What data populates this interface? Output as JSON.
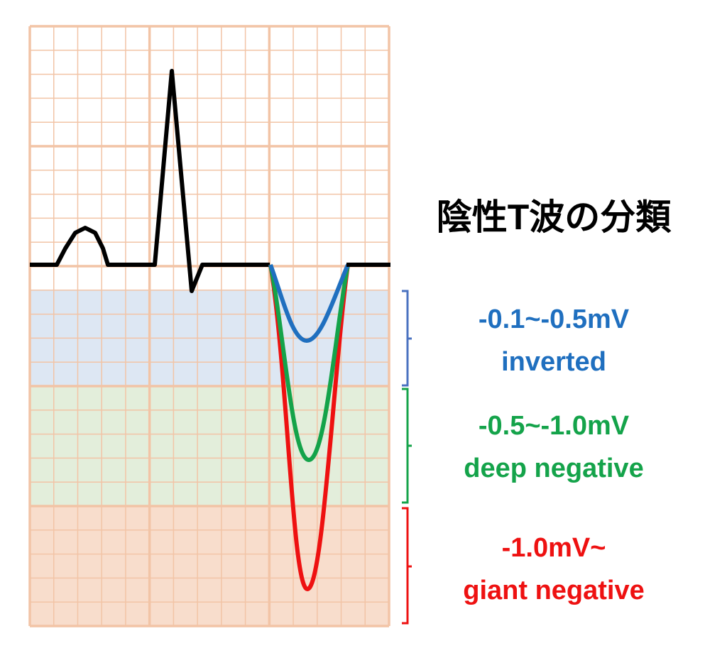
{
  "title": "陰性T波の分類",
  "categories": [
    {
      "range": "-0.1~-0.5mV",
      "name": "inverted",
      "color": "#1f6fbf"
    },
    {
      "range": "-0.5~-1.0mV",
      "name": "deep negative",
      "color": "#14a34a"
    },
    {
      "range": "-1.0mV~",
      "name": "giant negative",
      "color": "#ee1111"
    }
  ]
}
